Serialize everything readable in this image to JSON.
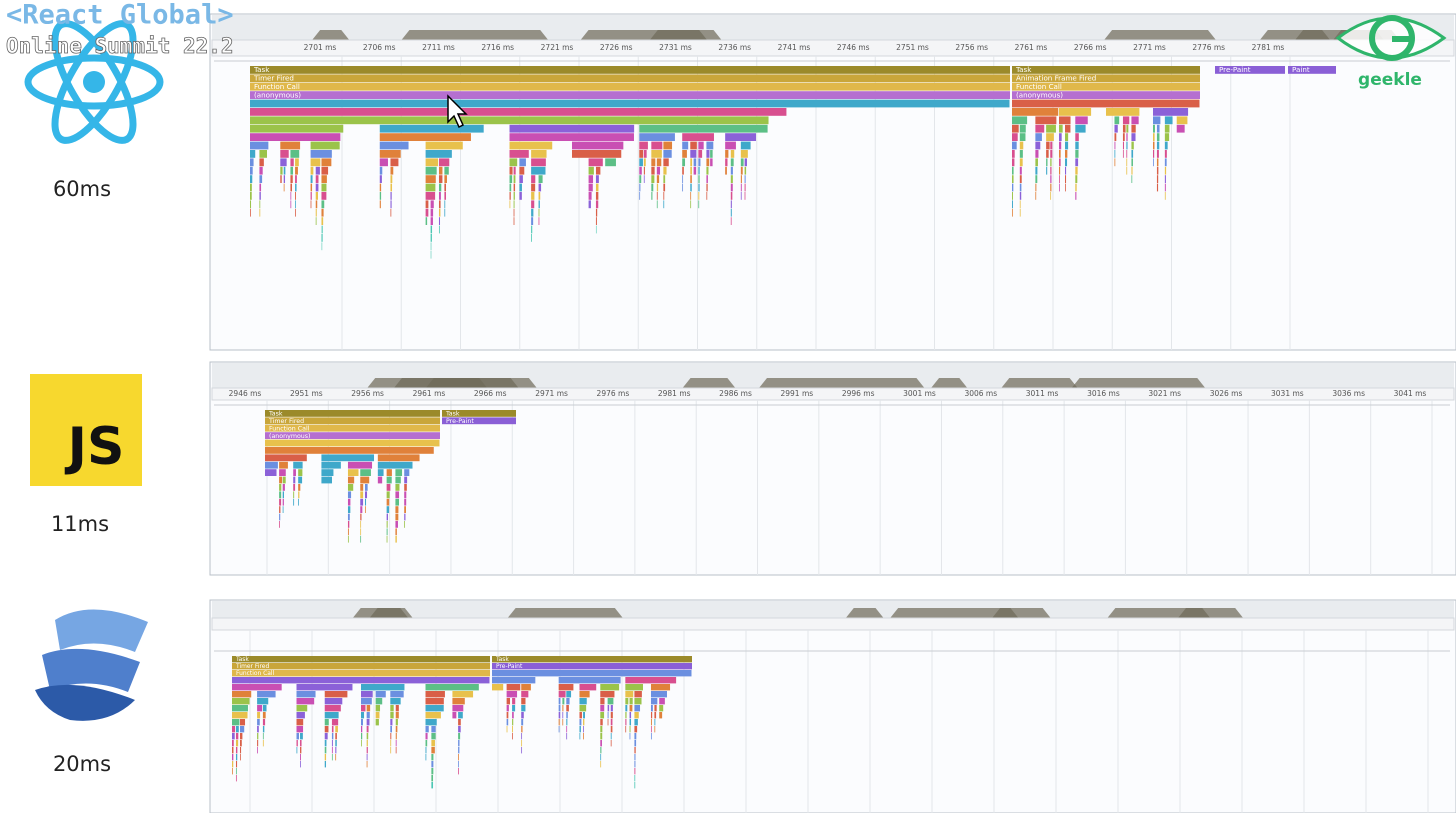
{
  "header": {
    "title": "<React Global>",
    "subtitle": "Online Summit 22.2",
    "brand": "geekle"
  },
  "panels": [
    {
      "time": "60ms",
      "ticks": [
        "2701 ms",
        "2706 ms",
        "2711 ms",
        "2716 ms",
        "2721 ms",
        "2726 ms",
        "2731 ms",
        "2736 ms",
        "2741 ms",
        "2746 ms",
        "2751 ms",
        "2756 ms",
        "2761 ms",
        "2766 ms",
        "2771 ms",
        "2776 ms",
        "2781 ms"
      ],
      "stacks": [
        [
          "Task",
          "Timer Fired",
          "Function Call",
          "(anonymous)"
        ],
        [
          "Task",
          "Animation Frame Fired",
          "Function Call",
          "(anonymous)"
        ],
        [
          "Pre-Paint"
        ],
        [
          "Paint"
        ]
      ]
    },
    {
      "time": "11ms",
      "logo": "JS",
      "ticks": [
        "2946 ms",
        "2951 ms",
        "2956 ms",
        "2961 ms",
        "2966 ms",
        "2971 ms",
        "2976 ms",
        "2981 ms",
        "2986 ms",
        "2991 ms",
        "2996 ms",
        "3001 ms",
        "3006 ms",
        "3011 ms",
        "3016 ms",
        "3021 ms",
        "3026 ms",
        "3031 ms",
        "3036 ms",
        "3041 ms"
      ],
      "stacks": [
        [
          "Task",
          "Timer Fired",
          "Function Call",
          "(anonymous)"
        ],
        [
          "Task",
          "Pre-Paint"
        ]
      ]
    },
    {
      "time": "20ms",
      "stacks": [
        [
          "Task",
          "Timer Fired",
          "Function Call"
        ],
        [
          "Task",
          "Pre-Paint"
        ]
      ]
    }
  ]
}
